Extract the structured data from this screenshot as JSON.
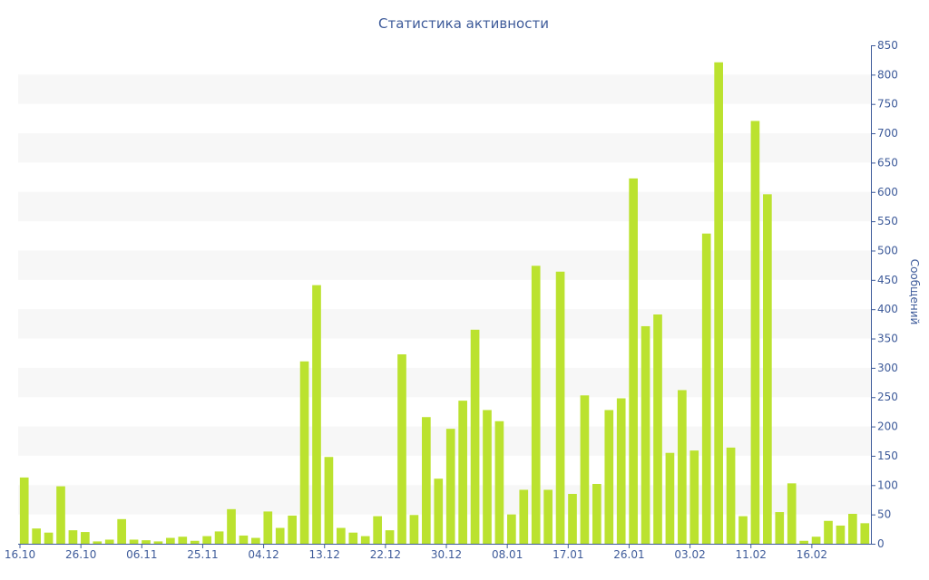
{
  "chart_data": {
    "type": "bar",
    "title": "Статистика активности",
    "ylabel": "Сообщений",
    "xlabel": "",
    "ylim": [
      0,
      850
    ],
    "y_ticks": [
      0,
      50,
      100,
      150,
      200,
      250,
      300,
      350,
      400,
      450,
      500,
      550,
      600,
      650,
      700,
      750,
      800,
      850
    ],
    "y_axis_side": "right",
    "background_bands": true,
    "x_tick_labels": [
      "16.10",
      "26.10",
      "06.11",
      "25.11",
      "04.12",
      "13.12",
      "22.12",
      "30.12",
      "08.01",
      "17.01",
      "26.01",
      "03.02",
      "11.02",
      "16.02"
    ],
    "x_tick_indices": [
      0,
      5,
      10,
      15,
      20,
      25,
      30,
      35,
      40,
      45,
      50,
      55,
      60,
      65
    ],
    "values": [
      113,
      26,
      19,
      98,
      23,
      20,
      4,
      7,
      42,
      7,
      6,
      4,
      10,
      12,
      5,
      13,
      21,
      59,
      14,
      10,
      55,
      27,
      48,
      311,
      441,
      148,
      27,
      19,
      13,
      47,
      23,
      323,
      49,
      216,
      111,
      196,
      244,
      365,
      228,
      209,
      50,
      92,
      474,
      92,
      464,
      85,
      253,
      102,
      228,
      248,
      623,
      371,
      391,
      155,
      262,
      159,
      529,
      821,
      164,
      47,
      721,
      596,
      54,
      103,
      5,
      12,
      39,
      31,
      51,
      35
    ],
    "bar_color": "#bbe22f",
    "band_color": "#f7f7f7",
    "text_color": "#3e5b9a"
  }
}
